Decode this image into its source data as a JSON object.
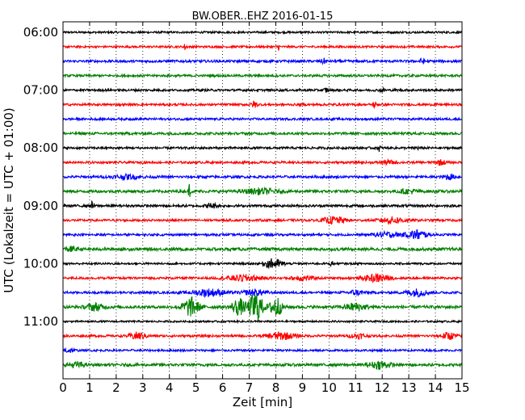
{
  "chart_data": {
    "type": "line",
    "title": "BW.OBER..EHZ 2016-01-15",
    "xlabel": "Zeit  [min]",
    "ylabel": "UTC (Lokalzeit = UTC + 01:00)",
    "xlim": [
      0,
      15
    ],
    "x_ticks": [
      "0",
      "1",
      "2",
      "3",
      "4",
      "5",
      "6",
      "7",
      "8",
      "9",
      "10",
      "11",
      "12",
      "13",
      "14",
      "15"
    ],
    "y_ticks": [
      "06:00",
      "07:00",
      "08:00",
      "09:00",
      "10:00",
      "11:00"
    ],
    "grid": true,
    "trace_colors": [
      "#000000",
      "#ff0000",
      "#0000ff",
      "#008000"
    ],
    "traces": [
      {
        "label": "06:00",
        "color": "#000000",
        "amp": 0.9,
        "events": []
      },
      {
        "label": "06:15",
        "color": "#ff0000",
        "amp": 0.9,
        "events": [
          {
            "t": 4.6,
            "a": 3,
            "w": 0.05
          },
          {
            "t": 8.1,
            "a": 2.5,
            "w": 0.05
          }
        ]
      },
      {
        "label": "06:30",
        "color": "#0000ff",
        "amp": 1.1,
        "events": [
          {
            "t": 9.8,
            "a": 2,
            "w": 0.1
          },
          {
            "t": 13.5,
            "a": 2,
            "w": 0.1
          }
        ]
      },
      {
        "label": "06:45",
        "color": "#008000",
        "amp": 1.0,
        "events": []
      },
      {
        "label": "07:00",
        "color": "#000000",
        "amp": 1.0,
        "events": [
          {
            "t": 9.9,
            "a": 2,
            "w": 0.08
          },
          {
            "t": 12,
            "a": 1.5,
            "w": 0.1
          }
        ]
      },
      {
        "label": "07:15",
        "color": "#ff0000",
        "amp": 1.0,
        "events": [
          {
            "t": 7.2,
            "a": 3,
            "w": 0.1
          },
          {
            "t": 11.7,
            "a": 3,
            "w": 0.06
          }
        ]
      },
      {
        "label": "07:30",
        "color": "#0000ff",
        "amp": 1.0,
        "events": []
      },
      {
        "label": "07:45",
        "color": "#008000",
        "amp": 1.1,
        "events": []
      },
      {
        "label": "08:00",
        "color": "#000000",
        "amp": 1.0,
        "events": [
          {
            "t": 11.9,
            "a": 3.5,
            "w": 0.04
          },
          {
            "t": 13.3,
            "a": 2,
            "w": 0.06
          }
        ]
      },
      {
        "label": "08:15",
        "color": "#ff0000",
        "amp": 1.0,
        "events": [
          {
            "t": 12.2,
            "a": 1.5,
            "w": 0.3
          },
          {
            "t": 14.2,
            "a": 2,
            "w": 0.2
          }
        ]
      },
      {
        "label": "08:30",
        "color": "#0000ff",
        "amp": 1.1,
        "events": [
          {
            "t": 2.4,
            "a": 1.6,
            "w": 0.5
          },
          {
            "t": 14.5,
            "a": 2.2,
            "w": 0.2
          }
        ]
      },
      {
        "label": "08:45",
        "color": "#008000",
        "amp": 1.2,
        "events": [
          {
            "t": 4.75,
            "a": 9,
            "w": 0.03
          },
          {
            "t": 7.4,
            "a": 2.2,
            "w": 0.6
          },
          {
            "t": 13,
            "a": 1.6,
            "w": 0.4
          }
        ]
      },
      {
        "label": "09:00",
        "color": "#000000",
        "amp": 1.1,
        "events": [
          {
            "t": 1.1,
            "a": 3.5,
            "w": 0.05
          },
          {
            "t": 5.6,
            "a": 2,
            "w": 0.2
          }
        ]
      },
      {
        "label": "09:15",
        "color": "#ff0000",
        "amp": 1.0,
        "events": [
          {
            "t": 10.2,
            "a": 3,
            "w": 0.4
          },
          {
            "t": 12.4,
            "a": 2.5,
            "w": 0.5
          }
        ]
      },
      {
        "label": "09:30",
        "color": "#0000ff",
        "amp": 1.0,
        "events": [
          {
            "t": 12.2,
            "a": 2,
            "w": 0.5
          },
          {
            "t": 13.3,
            "a": 4,
            "w": 0.35
          }
        ]
      },
      {
        "label": "09:45",
        "color": "#008000",
        "amp": 1.3,
        "events": [
          {
            "t": 0.3,
            "a": 2,
            "w": 0.2
          }
        ]
      },
      {
        "label": "10:00",
        "color": "#000000",
        "amp": 0.9,
        "events": [
          {
            "t": 7.9,
            "a": 4,
            "w": 0.35
          },
          {
            "t": 10.1,
            "a": 2,
            "w": 0.06
          }
        ]
      },
      {
        "label": "10:15",
        "color": "#ff0000",
        "amp": 1.0,
        "events": [
          {
            "t": 6.8,
            "a": 2.5,
            "w": 0.6
          },
          {
            "t": 11.8,
            "a": 3,
            "w": 0.5
          },
          {
            "t": 9,
            "a": 2,
            "w": 0.4
          }
        ]
      },
      {
        "label": "10:30",
        "color": "#0000ff",
        "amp": 1.0,
        "events": [
          {
            "t": 5.5,
            "a": 3,
            "w": 0.6
          },
          {
            "t": 7.2,
            "a": 2.5,
            "w": 0.4
          },
          {
            "t": 13.3,
            "a": 3,
            "w": 0.4
          },
          {
            "t": 11,
            "a": 2,
            "w": 0.3
          }
        ]
      },
      {
        "label": "10:45",
        "color": "#008000",
        "amp": 1.3,
        "events": [
          {
            "t": 1.2,
            "a": 3,
            "w": 0.3
          },
          {
            "t": 4.8,
            "a": 8,
            "w": 0.3
          },
          {
            "t": 6.6,
            "a": 7,
            "w": 0.25
          },
          {
            "t": 7.25,
            "a": 14,
            "w": 0.25
          },
          {
            "t": 8,
            "a": 10,
            "w": 0.2
          },
          {
            "t": 11,
            "a": 3,
            "w": 0.4
          }
        ]
      },
      {
        "label": "11:00",
        "color": "#000000",
        "amp": 0.8,
        "events": []
      },
      {
        "label": "11:15",
        "color": "#ff0000",
        "amp": 1.0,
        "events": [
          {
            "t": 2.8,
            "a": 3,
            "w": 0.3
          },
          {
            "t": 8.2,
            "a": 3,
            "w": 0.5
          },
          {
            "t": 11.1,
            "a": 2,
            "w": 0.3
          },
          {
            "t": 14.5,
            "a": 3,
            "w": 0.25
          }
        ]
      },
      {
        "label": "11:30",
        "color": "#0000ff",
        "amp": 0.9,
        "events": [
          {
            "t": 0.2,
            "a": 2,
            "w": 0.2
          }
        ]
      },
      {
        "label": "11:45",
        "color": "#008000",
        "amp": 1.2,
        "events": [
          {
            "t": 0.5,
            "a": 2.2,
            "w": 0.3
          },
          {
            "t": 11.9,
            "a": 3,
            "w": 0.4
          }
        ]
      }
    ]
  }
}
